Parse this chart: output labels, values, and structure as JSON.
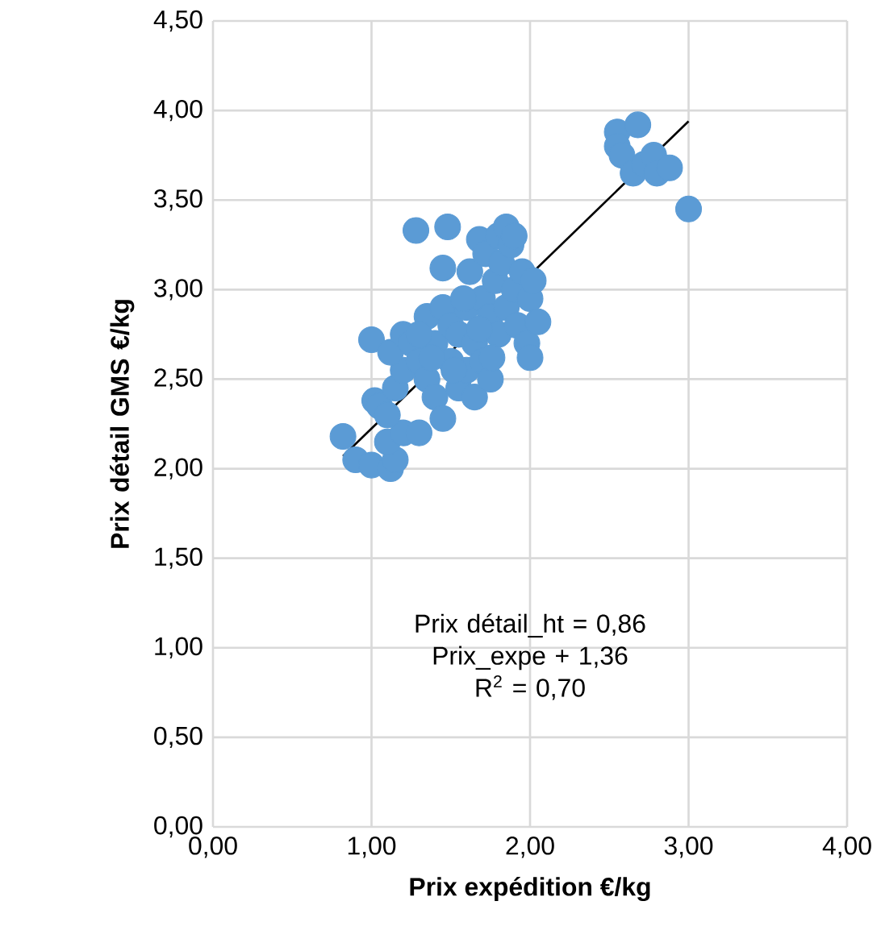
{
  "chart_data": {
    "type": "scatter",
    "xlabel": "Prix expédition €/kg",
    "ylabel": "Prix détail GMS €/kg",
    "xlim": [
      0,
      4
    ],
    "ylim": [
      0,
      4.5
    ],
    "xticks": [
      {
        "value": 0,
        "label": "0,00"
      },
      {
        "value": 1,
        "label": "1,00"
      },
      {
        "value": 2,
        "label": "2,00"
      },
      {
        "value": 3,
        "label": "3,00"
      },
      {
        "value": 4,
        "label": "4,00"
      }
    ],
    "yticks": [
      {
        "value": 0,
        "label": "0,00"
      },
      {
        "value": 0.5,
        "label": "0,50"
      },
      {
        "value": 1,
        "label": "1,00"
      },
      {
        "value": 1.5,
        "label": "1,50"
      },
      {
        "value": 2,
        "label": "2,00"
      },
      {
        "value": 2.5,
        "label": "2,50"
      },
      {
        "value": 3,
        "label": "3,00"
      },
      {
        "value": 3.5,
        "label": "3,50"
      },
      {
        "value": 4,
        "label": "4,00"
      },
      {
        "value": 4.5,
        "label": "4,50"
      }
    ],
    "grid": true,
    "marker": "circle",
    "annotations": [
      "Prix détail_ht = 0,86 Prix_expe + 1,36",
      "R$^{2}$ = 0,70"
    ],
    "series": [
      {
        "color": "#5b9bd5",
        "x": [
          0.82,
          0.9,
          1.0,
          1.02,
          1.0,
          1.05,
          1.12,
          1.15,
          1.1,
          1.2,
          1.1,
          1.15,
          1.2,
          1.12,
          1.2,
          1.25,
          1.28,
          1.3,
          1.3,
          1.35,
          1.35,
          1.4,
          1.4,
          1.45,
          1.45,
          1.45,
          1.48,
          1.5,
          1.5,
          1.55,
          1.55,
          1.6,
          1.6,
          1.62,
          1.65,
          1.65,
          1.68,
          1.7,
          1.7,
          1.72,
          1.75,
          1.75,
          1.78,
          1.8,
          1.8,
          1.82,
          1.85,
          1.85,
          1.88,
          1.9,
          1.92,
          1.95,
          1.98,
          2.0,
          2.0,
          2.02,
          2.05,
          1.9,
          1.58,
          1.3,
          1.38,
          1.52,
          1.68,
          1.76,
          2.55,
          2.55,
          2.58,
          2.65,
          2.68,
          2.72,
          2.78,
          2.8,
          2.88,
          3.0
        ],
        "values": [
          2.18,
          2.05,
          2.02,
          2.38,
          2.72,
          2.35,
          2.0,
          2.05,
          2.15,
          2.2,
          2.3,
          2.45,
          2.55,
          2.65,
          2.75,
          2.7,
          3.33,
          2.2,
          2.6,
          2.85,
          2.5,
          2.4,
          2.7,
          2.28,
          2.9,
          3.12,
          3.35,
          2.6,
          2.8,
          2.75,
          2.45,
          2.55,
          2.9,
          3.1,
          2.4,
          2.7,
          3.28,
          2.6,
          2.95,
          3.2,
          2.5,
          2.85,
          3.05,
          3.3,
          2.75,
          3.15,
          3.35,
          2.9,
          3.25,
          3.0,
          2.8,
          3.1,
          2.7,
          2.62,
          2.95,
          3.05,
          2.82,
          3.3,
          2.95,
          2.75,
          2.62,
          2.55,
          2.78,
          2.62,
          3.88,
          3.8,
          3.75,
          3.65,
          3.92,
          3.7,
          3.75,
          3.65,
          3.68,
          3.45
        ]
      },
      {
        "type": "line",
        "marker": "none",
        "color": "#000000",
        "x": [
          0.82,
          3.0
        ],
        "values": [
          2.07,
          3.94
        ]
      }
    ]
  }
}
